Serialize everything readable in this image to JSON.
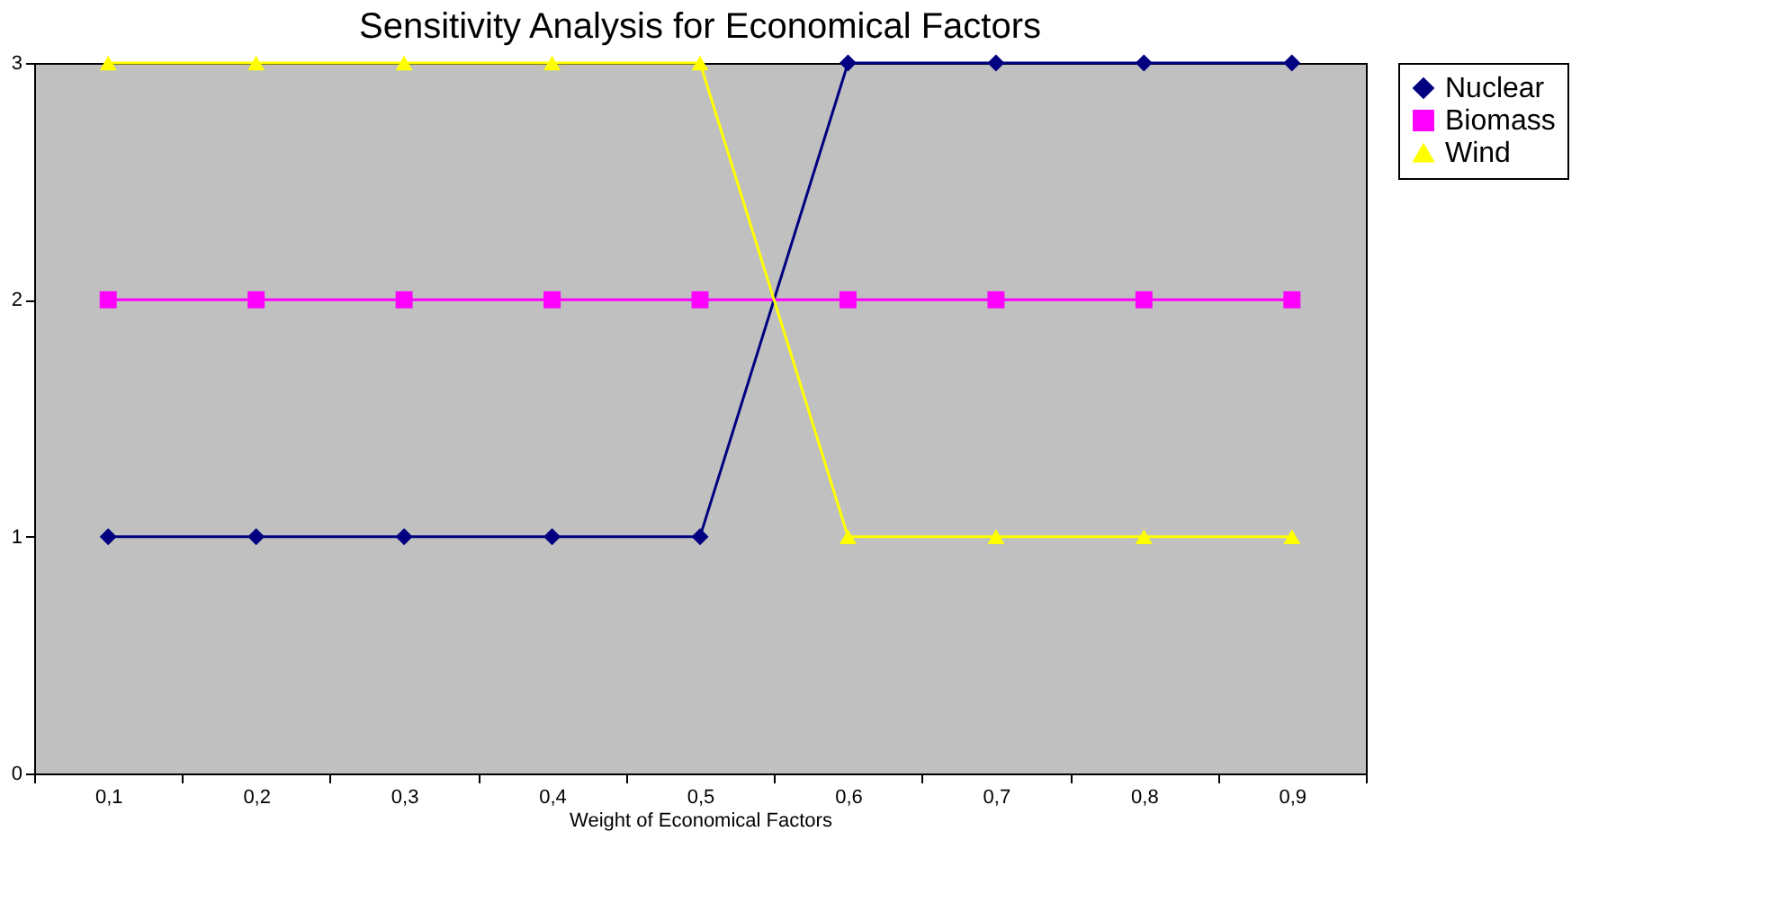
{
  "chart_data": {
    "type": "line",
    "title": "Sensitivity Analysis for Economical Factors",
    "xlabel": "Weight of Economical Factors",
    "categories": [
      "0,1",
      "0,2",
      "0,3",
      "0,4",
      "0,5",
      "0,6",
      "0,7",
      "0,8",
      "0,9"
    ],
    "series": [
      {
        "name": "Nuclear",
        "color": "#000080",
        "marker": "diamond",
        "values": [
          1,
          1,
          1,
          1,
          1,
          3,
          3,
          3,
          3
        ]
      },
      {
        "name": "Biomass",
        "color": "#ff00ff",
        "marker": "square",
        "values": [
          2,
          2,
          2,
          2,
          2,
          2,
          2,
          2,
          2
        ]
      },
      {
        "name": "Wind",
        "color": "#ffff00",
        "marker": "triangle",
        "values": [
          3,
          3,
          3,
          3,
          3,
          1,
          1,
          1,
          1
        ]
      }
    ],
    "ylim": [
      0,
      3
    ],
    "yticks": [
      0,
      1,
      2,
      3
    ],
    "grid": false,
    "legend": "right",
    "line_style": "solid"
  }
}
